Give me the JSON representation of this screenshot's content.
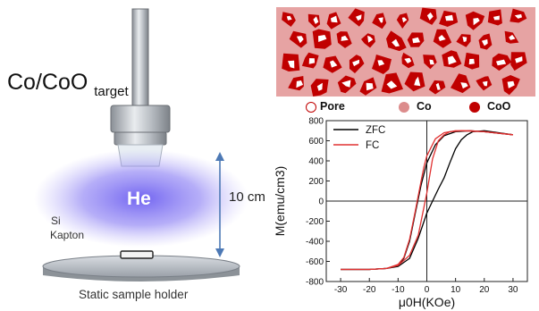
{
  "setup": {
    "target_label": "Co/CoO",
    "target_sub": "target",
    "gas_label": "He",
    "distance_label": "10 cm",
    "substrate_line1": "Si",
    "substrate_line2": "Kapton",
    "holder_label": "Static sample holder"
  },
  "legend": {
    "items": [
      {
        "label": "Pore",
        "color": "#ffffff"
      },
      {
        "label": "Co",
        "color": "#dc8c8c"
      },
      {
        "label": "CoO",
        "color": "#c00000"
      }
    ]
  },
  "chart_data": {
    "type": "line",
    "title": "",
    "xlabel": "μ0H(KOe)",
    "ylabel": "M(emu/cm3)",
    "xlim": [
      -35,
      35
    ],
    "ylim": [
      -800,
      800
    ],
    "xticks": [
      -30,
      -20,
      -10,
      0,
      10,
      20,
      30
    ],
    "yticks": [
      -800,
      -600,
      -400,
      -200,
      0,
      200,
      400,
      600,
      800
    ],
    "legend_position": "top-left",
    "series": [
      {
        "name": "ZFC",
        "color": "#000000",
        "branches": [
          {
            "x": [
              30,
              20,
              15,
              10,
              6,
              3,
              0,
              -2,
              -4,
              -6,
              -8,
              -10,
              -14,
              -20,
              -30
            ],
            "y": [
              660,
              690,
              700,
              690,
              650,
              560,
              380,
              160,
              -120,
              -400,
              -570,
              -640,
              -670,
              -680,
              -680
            ]
          },
          {
            "x": [
              -30,
              -20,
              -14,
              -10,
              -6,
              -3,
              0,
              2,
              4,
              6,
              8,
              10,
              12,
              14,
              16,
              20,
              30
            ],
            "y": [
              -680,
              -680,
              -670,
              -650,
              -570,
              -370,
              -120,
              0,
              120,
              230,
              380,
              520,
              610,
              660,
              690,
              700,
              660
            ]
          }
        ]
      },
      {
        "name": "FC",
        "color": "#e03030",
        "branches": [
          {
            "x": [
              30,
              20,
              15,
              10,
              6,
              3,
              0,
              -1,
              -2,
              -4,
              -6,
              -8,
              -10,
              -14,
              -20,
              -30
            ],
            "y": [
              660,
              690,
              700,
              700,
              680,
              620,
              450,
              340,
              200,
              -100,
              -380,
              -560,
              -630,
              -670,
              -680,
              -680
            ]
          },
          {
            "x": [
              -30,
              -20,
              -14,
              -10,
              -6,
              -3,
              0,
              2,
              4,
              6,
              8,
              12,
              20,
              30
            ],
            "y": [
              -680,
              -680,
              -670,
              -640,
              -540,
              -340,
              80,
              420,
              600,
              660,
              690,
              700,
              690,
              660
            ]
          }
        ]
      }
    ]
  }
}
